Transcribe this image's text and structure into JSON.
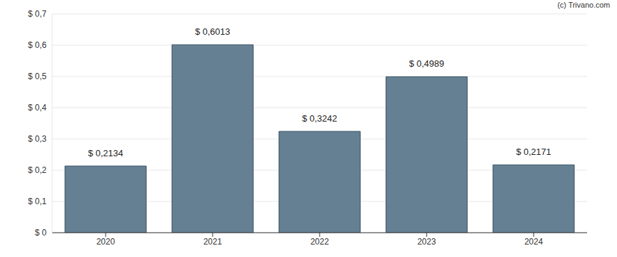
{
  "chart_data": {
    "type": "bar",
    "annotations": [
      "(c) Trivano.com"
    ],
    "categories": [
      "2020",
      "2021",
      "2022",
      "2023",
      "2024"
    ],
    "values": [
      0.2134,
      0.6013,
      0.3242,
      0.4989,
      0.2171
    ],
    "value_labels": [
      "$ 0,2134",
      "$ 0,6013",
      "$ 0,3242",
      "$ 0,4989",
      "$ 0,2171"
    ],
    "data_labels": true,
    "color": "#657f93",
    "ylim": [
      0,
      0.7
    ],
    "yticks": [
      {
        "value": 0,
        "label": "$ 0"
      },
      {
        "value": 0.1,
        "label": "$ 0,1"
      },
      {
        "value": 0.2,
        "label": "$ 0,2"
      },
      {
        "value": 0.3,
        "label": "$ 0,3"
      },
      {
        "value": 0.4,
        "label": "$ 0,4"
      },
      {
        "value": 0.5,
        "label": "$ 0,5"
      },
      {
        "value": 0.6,
        "label": "$ 0,6"
      },
      {
        "value": 0.7,
        "label": "$ 0,7"
      }
    ],
    "grid": true
  }
}
